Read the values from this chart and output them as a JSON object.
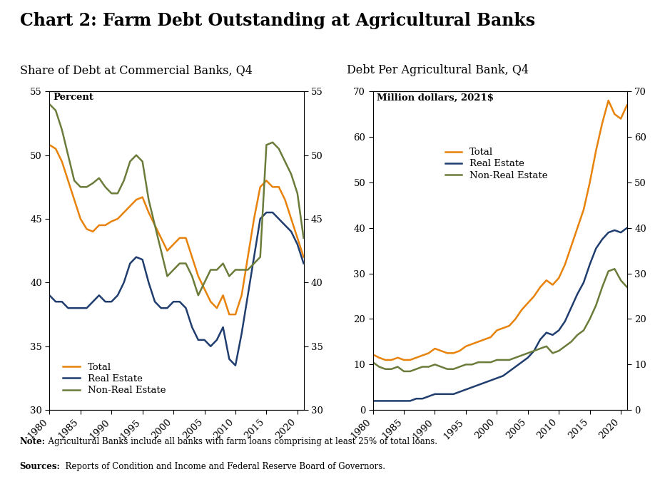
{
  "title": "Chart 2: Farm Debt Outstanding at Agricultural Banks",
  "left_title": "Share of Debt at Commercial Banks, Q4",
  "right_title": "Debt Per Agricultural Bank, Q4",
  "left_ylabel": "Percent",
  "right_ylabel": "Million dollars, 2021$",
  "note_bold": "Note:",
  "note_rest": "  Agricultural Banks include all banks with farm loans comprising at least 25% of total loans.",
  "sources_bold": "Sources:",
  "sources_rest": "  Reports of Condition and Income and Federal Reserve Board of Governors.",
  "years": [
    1980,
    1981,
    1982,
    1983,
    1984,
    1985,
    1986,
    1987,
    1988,
    1989,
    1990,
    1991,
    1992,
    1993,
    1994,
    1995,
    1996,
    1997,
    1998,
    1999,
    2000,
    2001,
    2002,
    2003,
    2004,
    2005,
    2006,
    2007,
    2008,
    2009,
    2010,
    2011,
    2012,
    2013,
    2014,
    2015,
    2016,
    2017,
    2018,
    2019,
    2020,
    2021
  ],
  "left_total": [
    50.8,
    50.5,
    49.5,
    48.0,
    46.5,
    45.0,
    44.2,
    44.0,
    44.5,
    44.5,
    44.8,
    45.0,
    45.5,
    46.0,
    46.5,
    46.7,
    45.5,
    44.5,
    43.5,
    42.5,
    43.0,
    43.5,
    43.5,
    42.0,
    40.5,
    39.5,
    38.5,
    38.0,
    39.0,
    37.5,
    37.5,
    39.0,
    42.0,
    45.0,
    47.5,
    48.0,
    47.5,
    47.5,
    46.5,
    45.0,
    43.5,
    42.0
  ],
  "left_realestate": [
    39.0,
    38.5,
    38.5,
    38.0,
    38.0,
    38.0,
    38.0,
    38.5,
    39.0,
    38.5,
    38.5,
    39.0,
    40.0,
    41.5,
    42.0,
    41.8,
    40.0,
    38.5,
    38.0,
    38.0,
    38.5,
    38.5,
    38.0,
    36.5,
    35.5,
    35.5,
    35.0,
    35.5,
    36.5,
    34.0,
    33.5,
    36.0,
    39.0,
    42.0,
    45.0,
    45.5,
    45.5,
    45.0,
    44.5,
    44.0,
    43.0,
    41.5
  ],
  "left_nonrealestate": [
    54.0,
    53.5,
    52.0,
    50.0,
    48.0,
    47.5,
    47.5,
    47.8,
    48.2,
    47.5,
    47.0,
    47.0,
    48.0,
    49.5,
    50.0,
    49.5,
    46.5,
    44.5,
    42.5,
    40.5,
    41.0,
    41.5,
    41.5,
    40.5,
    39.0,
    40.0,
    41.0,
    41.0,
    41.5,
    40.5,
    41.0,
    41.0,
    41.0,
    41.5,
    42.0,
    50.8,
    51.0,
    50.5,
    49.5,
    48.5,
    47.0,
    43.5
  ],
  "right_total": [
    12.2,
    11.5,
    11.0,
    11.0,
    11.5,
    11.0,
    11.0,
    11.5,
    12.0,
    12.5,
    13.5,
    13.0,
    12.5,
    12.5,
    13.0,
    14.0,
    14.5,
    15.0,
    15.5,
    16.0,
    17.5,
    18.0,
    18.5,
    20.0,
    22.0,
    23.5,
    25.0,
    27.0,
    28.5,
    27.5,
    29.0,
    32.0,
    36.0,
    40.0,
    44.0,
    50.0,
    57.0,
    63.0,
    68.0,
    65.0,
    64.0,
    67.0
  ],
  "right_realestate": [
    2.0,
    2.0,
    2.0,
    2.0,
    2.0,
    2.0,
    2.0,
    2.5,
    2.5,
    3.0,
    3.5,
    3.5,
    3.5,
    3.5,
    4.0,
    4.5,
    5.0,
    5.5,
    6.0,
    6.5,
    7.0,
    7.5,
    8.5,
    9.5,
    10.5,
    11.5,
    13.0,
    15.5,
    17.0,
    16.5,
    17.5,
    19.5,
    22.5,
    25.5,
    28.0,
    32.0,
    35.5,
    37.5,
    39.0,
    39.5,
    39.0,
    40.0
  ],
  "right_nonrealestate": [
    10.5,
    9.5,
    9.0,
    9.0,
    9.5,
    8.5,
    8.5,
    9.0,
    9.5,
    9.5,
    10.0,
    9.5,
    9.0,
    9.0,
    9.5,
    10.0,
    10.0,
    10.5,
    10.5,
    10.5,
    11.0,
    11.0,
    11.0,
    11.5,
    12.0,
    12.5,
    13.0,
    13.5,
    14.0,
    12.5,
    13.0,
    14.0,
    15.0,
    16.5,
    17.5,
    20.0,
    23.0,
    27.0,
    30.5,
    31.0,
    28.5,
    27.0
  ],
  "color_total": "#E8820A",
  "color_realestate": "#1F3D6E",
  "color_nonrealestate": "#6B7C3A",
  "left_ylim": [
    30,
    55
  ],
  "right_ylim": [
    0,
    70
  ],
  "left_yticks": [
    30,
    35,
    40,
    45,
    50,
    55
  ],
  "right_yticks": [
    0,
    10,
    20,
    30,
    40,
    50,
    60,
    70
  ],
  "xticks": [
    1980,
    1985,
    1990,
    1995,
    2000,
    2005,
    2010,
    2015,
    2020
  ]
}
